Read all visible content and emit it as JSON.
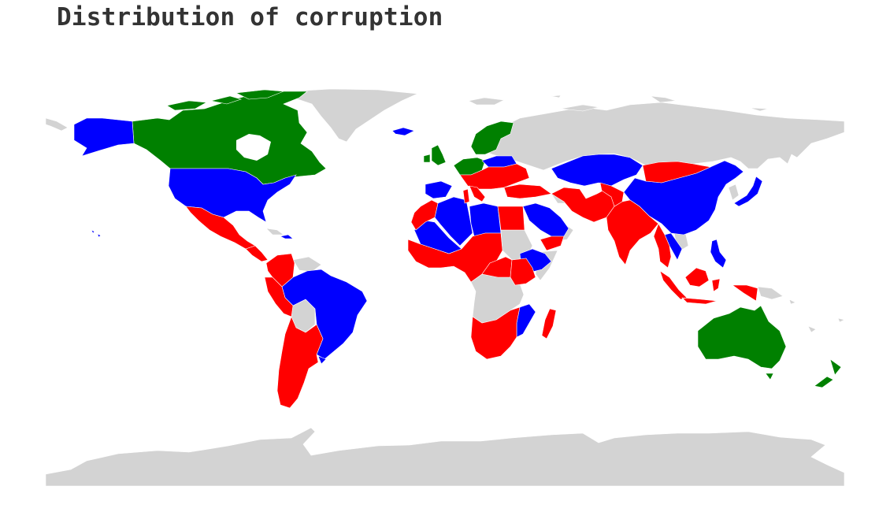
{
  "title": "Distribution of corruption",
  "colors": {
    "no_data": "#d3d3d3",
    "red": "#ff0000",
    "blue": "#0000ff",
    "green": "#008000",
    "background": "#ffffff",
    "title": "#333333"
  },
  "map": {
    "projection": "equirectangular",
    "regions": [
      {
        "name": "Canada",
        "category": "green"
      },
      {
        "name": "United States",
        "category": "blue"
      },
      {
        "name": "Alaska",
        "category": "blue"
      },
      {
        "name": "Mexico",
        "category": "red"
      },
      {
        "name": "Central America",
        "category": "red"
      },
      {
        "name": "Cuba",
        "category": "blue"
      },
      {
        "name": "Greenland",
        "category": "no_data"
      },
      {
        "name": "Iceland",
        "category": "blue"
      },
      {
        "name": "Colombia",
        "category": "red"
      },
      {
        "name": "Venezuela",
        "category": "red"
      },
      {
        "name": "Peru",
        "category": "red"
      },
      {
        "name": "Brazil",
        "category": "blue"
      },
      {
        "name": "Bolivia",
        "category": "no_data"
      },
      {
        "name": "Argentina",
        "category": "red"
      },
      {
        "name": "Chile",
        "category": "red"
      },
      {
        "name": "Uruguay",
        "category": "blue"
      },
      {
        "name": "Scandinavia",
        "category": "green"
      },
      {
        "name": "United Kingdom",
        "category": "green"
      },
      {
        "name": "Western Europe",
        "category": "green"
      },
      {
        "name": "Iberia",
        "category": "blue"
      },
      {
        "name": "Eastern Europe",
        "category": "red"
      },
      {
        "name": "Poland",
        "category": "blue"
      },
      {
        "name": "Turkey",
        "category": "red"
      },
      {
        "name": "Russia",
        "category": "no_data"
      },
      {
        "name": "Kazakhstan",
        "category": "blue"
      },
      {
        "name": "Mongolia",
        "category": "red"
      },
      {
        "name": "China",
        "category": "blue"
      },
      {
        "name": "Japan",
        "category": "blue"
      },
      {
        "name": "India",
        "category": "red"
      },
      {
        "name": "Iran",
        "category": "red"
      },
      {
        "name": "Saudi Arabia",
        "category": "blue"
      },
      {
        "name": "Morocco",
        "category": "red"
      },
      {
        "name": "Algeria",
        "category": "blue"
      },
      {
        "name": "Libya",
        "category": "blue"
      },
      {
        "name": "Egypt",
        "category": "red"
      },
      {
        "name": "West Africa",
        "category": "red"
      },
      {
        "name": "Ethiopia",
        "category": "blue"
      },
      {
        "name": "Central Africa",
        "category": "no_data"
      },
      {
        "name": "Southern Africa",
        "category": "red"
      },
      {
        "name": "Mozambique",
        "category": "blue"
      },
      {
        "name": "Madagascar",
        "category": "red"
      },
      {
        "name": "Southeast Asia",
        "category": "red"
      },
      {
        "name": "Philippines",
        "category": "blue"
      },
      {
        "name": "Indonesia",
        "category": "red"
      },
      {
        "name": "Papua New Guinea",
        "category": "no_data"
      },
      {
        "name": "Australia",
        "category": "green"
      },
      {
        "name": "New Zealand",
        "category": "green"
      },
      {
        "name": "Antarctica",
        "category": "no_data"
      }
    ]
  }
}
